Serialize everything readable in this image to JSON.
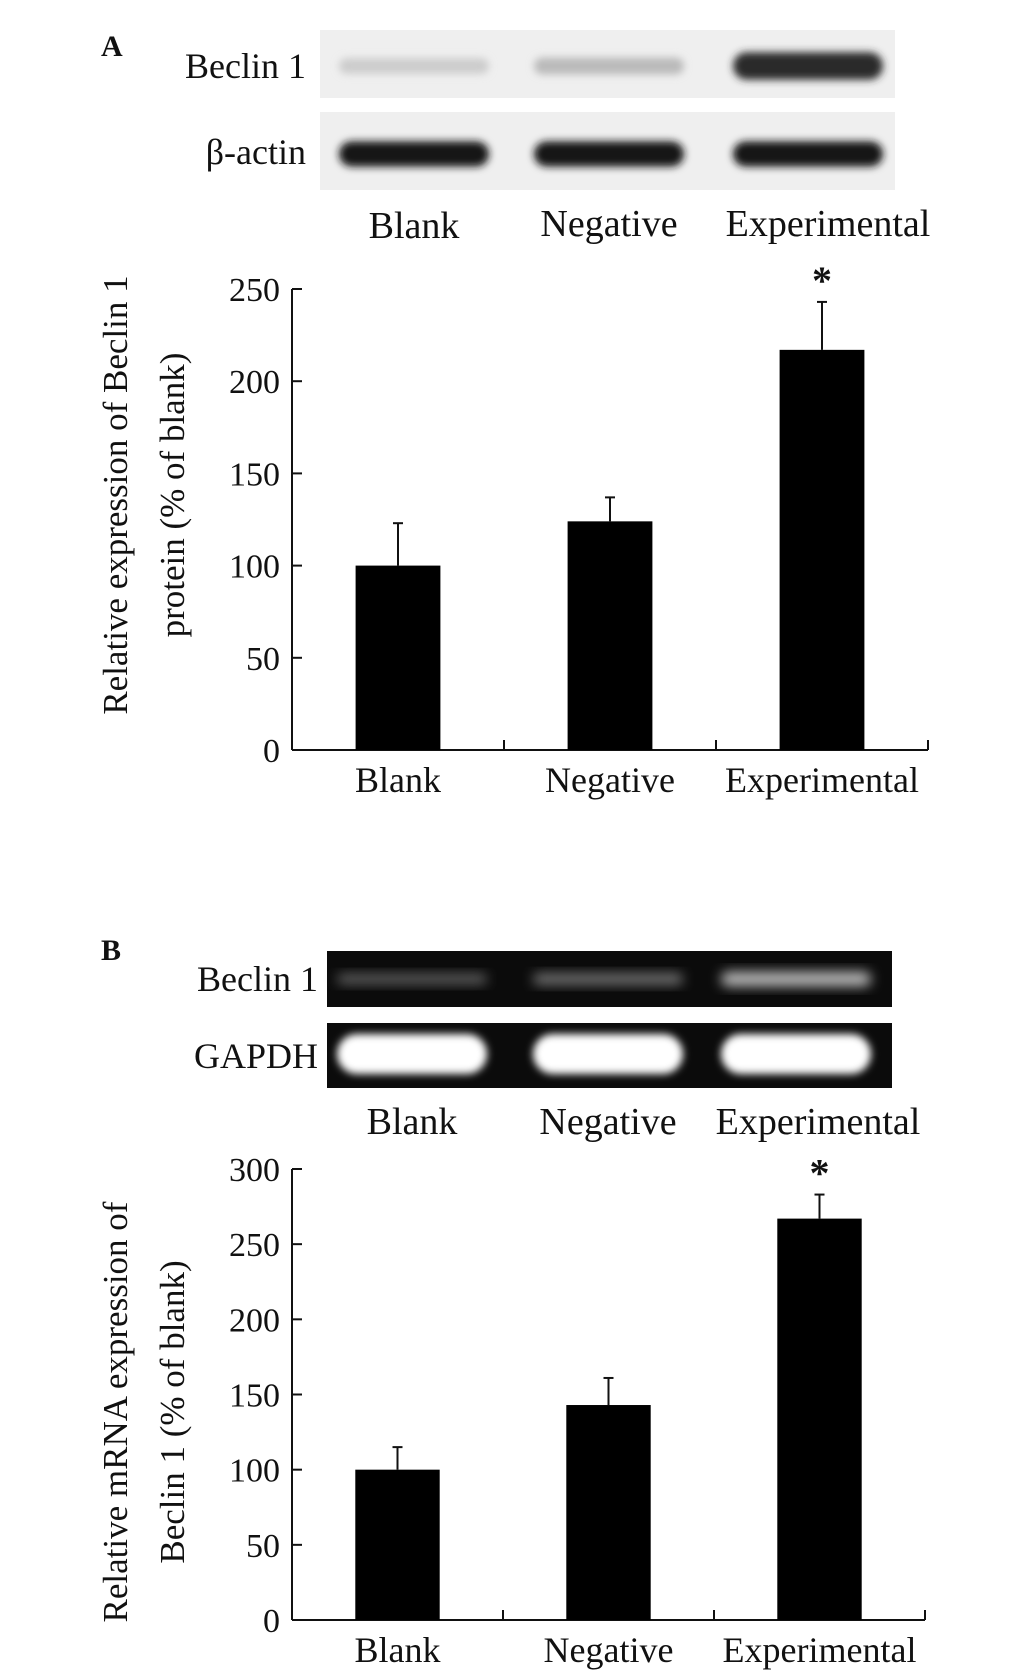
{
  "panels": [
    {
      "letter": "A",
      "blot": {
        "background": "light",
        "rows": [
          {
            "label": "Beclin 1",
            "intensity": [
              0.12,
              0.2,
              0.85
            ]
          },
          {
            "label": "β-actin",
            "intensity": [
              0.95,
              0.95,
              0.95
            ]
          }
        ],
        "lanes": [
          "Blank",
          "Negative",
          "Experimental"
        ]
      }
    },
    {
      "letter": "B",
      "blot": {
        "background": "dark",
        "rows": [
          {
            "label": "Beclin 1",
            "intensity": [
              0.2,
              0.3,
              0.65
            ]
          },
          {
            "label": "GAPDH",
            "intensity": [
              1.0,
              1.0,
              1.0
            ]
          }
        ],
        "lanes": [
          "Blank",
          "Negative",
          "Experimental"
        ]
      }
    }
  ],
  "chart_data": [
    {
      "type": "bar",
      "categories": [
        "Blank",
        "Negative",
        "Experimental"
      ],
      "values": [
        100,
        124,
        217
      ],
      "errors": [
        23,
        13,
        26
      ],
      "significance": [
        "",
        "",
        "*"
      ],
      "ylabel_line1": "Relative expression of Beclin 1",
      "ylabel_line2": "protein (% of blank)",
      "xlabel": "",
      "ylim": [
        0,
        250
      ],
      "yticks": [
        0,
        50,
        100,
        150,
        200,
        250
      ],
      "bar_color": "#000000",
      "grid": false
    },
    {
      "type": "bar",
      "categories": [
        "Blank",
        "Negative",
        "Experimental"
      ],
      "values": [
        100,
        143,
        267
      ],
      "errors": [
        15,
        18,
        16
      ],
      "significance": [
        "",
        "",
        "*"
      ],
      "ylabel_line1": "Relative mRNA expression of",
      "ylabel_line2": "Beclin 1 (% of blank)",
      "xlabel": "",
      "ylim": [
        0,
        300
      ],
      "yticks": [
        0,
        50,
        100,
        150,
        200,
        250,
        300
      ],
      "bar_color": "#000000",
      "grid": false
    }
  ]
}
